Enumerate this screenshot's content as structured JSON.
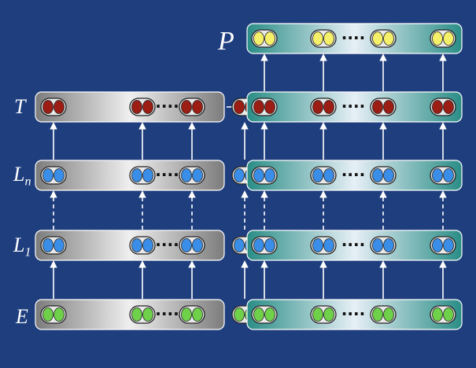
{
  "diagram": {
    "labels": {
      "embedding": "E",
      "layer_first_main": "L",
      "layer_first_sub": "1",
      "layer_n_main": "L",
      "layer_n_sub": "n",
      "output_left": "T",
      "output_right": "P"
    },
    "ellipsis": "····",
    "columns": {
      "left": {
        "color_scheme": "gray",
        "rows": [
          "output",
          "layer_n",
          "layer_1",
          "embedding"
        ]
      },
      "right": {
        "color_scheme": "teal",
        "rows": [
          "prediction",
          "output",
          "layer_n",
          "layer_1",
          "embedding"
        ]
      }
    },
    "dot_colors": {
      "embedding": "#6fd04a",
      "layer": "#3a8ee8",
      "output": "#9b1d14",
      "prediction": "#f4f06a"
    },
    "background_color": "#1f3e7e",
    "connections": {
      "between_layers": "dashed-arrow",
      "adjacent": "solid-arrow",
      "cross_column": "output-left-to-output-right"
    }
  }
}
